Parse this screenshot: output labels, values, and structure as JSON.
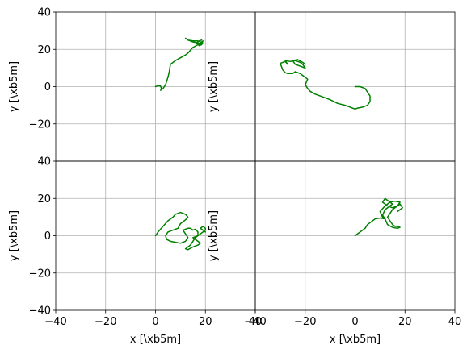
{
  "chart_data": [
    {
      "type": "line",
      "position": "top-left",
      "xlabel": "",
      "ylabel": "y [\\xb5m]",
      "xlim": [
        -40,
        40
      ],
      "ylim": [
        -40,
        40
      ],
      "xticks": [],
      "yticks": [
        40,
        20,
        0,
        -20
      ],
      "grid": true,
      "line_color": "#008000",
      "series": [
        {
          "x": [
            0,
            1,
            2,
            2.5,
            2,
            3,
            4,
            4.5,
            5,
            5.5,
            6,
            8,
            10,
            12,
            13,
            14,
            15,
            17,
            19,
            18,
            17,
            15,
            13,
            12,
            13,
            15,
            17,
            18,
            18.5,
            19,
            18.5,
            17.5,
            16.5,
            17.5,
            18.5
          ],
          "y": [
            0,
            0.5,
            0.3,
            -1.5,
            -2,
            -1,
            1,
            3,
            5,
            8,
            12,
            14,
            15.5,
            17,
            18,
            19.5,
            21,
            22.5,
            23,
            24,
            24.5,
            24.5,
            25,
            26,
            25,
            24,
            23.5,
            23,
            24,
            24.5,
            22.5,
            22,
            23.5,
            24.5,
            25
          ]
        }
      ]
    },
    {
      "type": "line",
      "position": "top-right",
      "xlabel": "",
      "ylabel": "y [\\xb5m]",
      "xlim": [
        -40,
        40
      ],
      "ylim": [
        -40,
        40
      ],
      "xticks": [],
      "yticks": [],
      "grid": true,
      "line_color": "#008000",
      "series": [
        {
          "x": [
            0,
            2,
            4,
            5,
            6,
            6,
            5,
            3,
            1,
            0,
            -2,
            -4,
            -7,
            -10,
            -13,
            -16,
            -18,
            -19,
            -20,
            -19,
            -21,
            -22,
            -24,
            -25,
            -27,
            -28,
            -29,
            -30,
            -28,
            -27,
            -28,
            -26,
            -24,
            -22,
            -21,
            -20,
            -22,
            -24,
            -25,
            -23,
            -21,
            -20
          ],
          "y": [
            0,
            0,
            -1,
            -3,
            -5,
            -8,
            -10,
            -11,
            -11.5,
            -12,
            -11,
            -10,
            -9,
            -7,
            -5.5,
            -4,
            -2.5,
            -1,
            1,
            4,
            6,
            7,
            8,
            7,
            7,
            7.5,
            9,
            12.5,
            13.5,
            12,
            14,
            13.5,
            14,
            13,
            12,
            10,
            11,
            12,
            14,
            14.5,
            13,
            12
          ]
        }
      ]
    },
    {
      "type": "line",
      "position": "bottom-left",
      "xlabel": "x [\\xb5m]",
      "ylabel": "y [\\xb5m]",
      "xlim": [
        -40,
        40
      ],
      "ylim": [
        -40,
        40
      ],
      "xticks": [
        -40,
        -20,
        0,
        20,
        40
      ],
      "yticks": [
        40,
        20,
        0,
        -20,
        -40
      ],
      "grid": true,
      "line_color": "#008000",
      "series": [
        {
          "x": [
            0,
            1,
            3,
            5,
            7,
            8,
            10,
            11,
            12,
            13,
            12,
            10,
            9,
            7,
            5,
            4,
            4.5,
            6,
            8,
            10,
            12,
            13,
            12,
            11,
            13,
            14,
            15,
            16,
            17,
            17,
            16,
            15,
            14,
            13,
            12,
            13,
            15,
            17,
            18,
            17,
            16,
            15,
            16,
            17,
            18,
            19,
            20,
            20,
            19,
            18,
            19,
            20
          ],
          "y": [
            0,
            2,
            5,
            8,
            10,
            11.5,
            12.5,
            12,
            11.5,
            10,
            8.5,
            6.5,
            4,
            3,
            2,
            0,
            -2,
            -3,
            -3.5,
            -4,
            -3,
            -1,
            1,
            3,
            4,
            4,
            3,
            3.5,
            2,
            0,
            -1,
            -3,
            -5,
            -6,
            -7,
            -7.5,
            -6,
            -5,
            -4,
            -3,
            -2,
            -1,
            -0.5,
            0,
            1,
            2,
            3,
            4,
            5,
            4,
            3,
            2
          ]
        }
      ]
    },
    {
      "type": "line",
      "position": "bottom-right",
      "xlabel": "x [\\xb5m]",
      "ylabel": "y [\\xb5m]",
      "xlim": [
        -40,
        40
      ],
      "ylim": [
        -40,
        40
      ],
      "xticks": [
        -40,
        -20,
        0,
        20,
        40
      ],
      "yticks": [],
      "grid": true,
      "line_color": "#008000",
      "series": [
        {
          "x": [
            0,
            2,
            4,
            5,
            6,
            7,
            8,
            10,
            12,
            11,
            10,
            12,
            14,
            16,
            18,
            17,
            16,
            15,
            14,
            13,
            14,
            15,
            16,
            17,
            18,
            17,
            15,
            13,
            12,
            11,
            12,
            14,
            15,
            13,
            12,
            11,
            12,
            13,
            15,
            17,
            18,
            19,
            18,
            17
          ],
          "y": [
            0,
            2,
            4,
            6,
            7,
            8,
            9,
            9.5,
            9,
            10,
            13,
            16,
            18,
            18.5,
            18,
            16,
            15,
            14,
            12,
            10,
            8,
            6,
            5,
            5,
            4.5,
            4,
            4.5,
            6,
            9,
            11,
            14,
            16,
            17,
            19,
            20,
            18,
            17,
            16,
            15,
            16,
            17,
            15,
            14,
            13
          ]
        }
      ]
    }
  ]
}
